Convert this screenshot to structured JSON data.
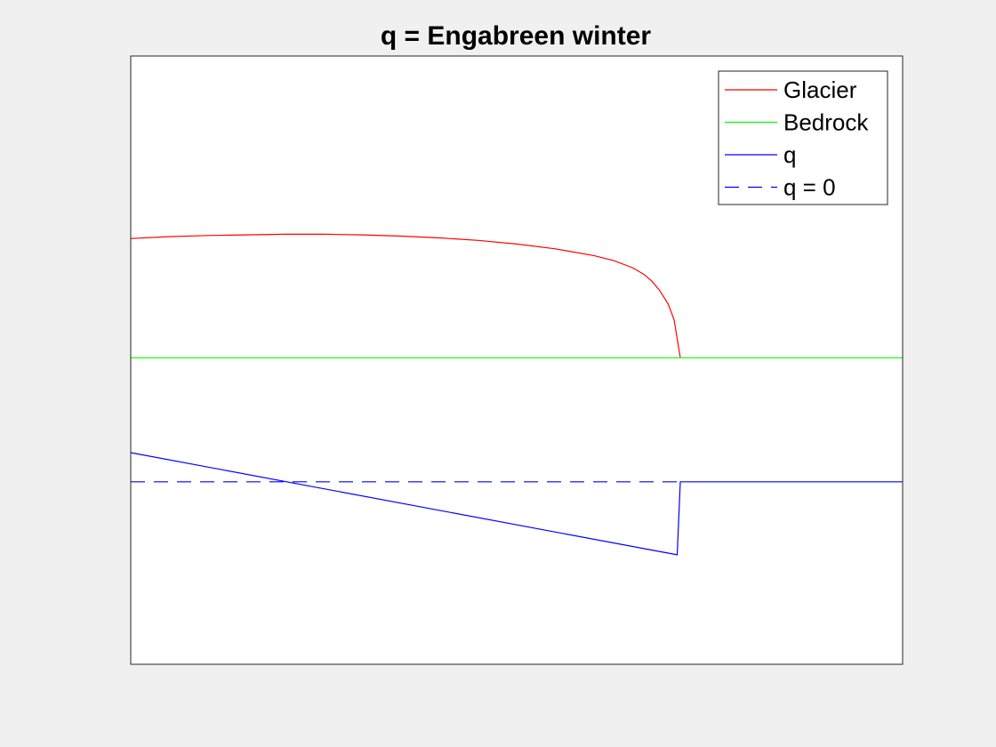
{
  "chart_data": {
    "type": "line",
    "title": "q = Engabreen winter",
    "xlabel": "",
    "ylabel": "",
    "xlim": [
      0,
      100
    ],
    "ylim": [
      0,
      100
    ],
    "grid": false,
    "legend": "top-right",
    "series": [
      {
        "name": "Glacier",
        "color": "#ff0000",
        "style": "solid",
        "x": [
          0,
          5,
          10,
          15,
          20,
          25,
          30,
          35,
          40,
          45,
          50,
          55,
          60,
          62.5,
          65,
          66.5,
          67.5,
          68.5,
          69.6,
          70,
          70.4,
          71.2
        ],
        "y": [
          70.0,
          70.3,
          70.5,
          70.6,
          70.7,
          70.7,
          70.6,
          70.4,
          70.1,
          69.7,
          69.1,
          68.3,
          67.2,
          66.4,
          65.2,
          64.1,
          63.0,
          61.5,
          59.3,
          58.0,
          56.6,
          50.4
        ]
      },
      {
        "name": "Bedrock",
        "color": "#00ff00",
        "style": "solid",
        "x": [
          0,
          100
        ],
        "y": [
          50.4,
          50.4
        ]
      },
      {
        "name": "q",
        "color": "#0000ff",
        "style": "solid",
        "x": [
          0,
          70.8,
          71.2,
          100
        ],
        "y": [
          34.8,
          18.0,
          30.0,
          30.0
        ]
      },
      {
        "name": "q = 0",
        "color": "#0000ff",
        "style": "dashed",
        "x": [
          0,
          71.2
        ],
        "y": [
          30.0,
          30.0
        ]
      }
    ]
  }
}
